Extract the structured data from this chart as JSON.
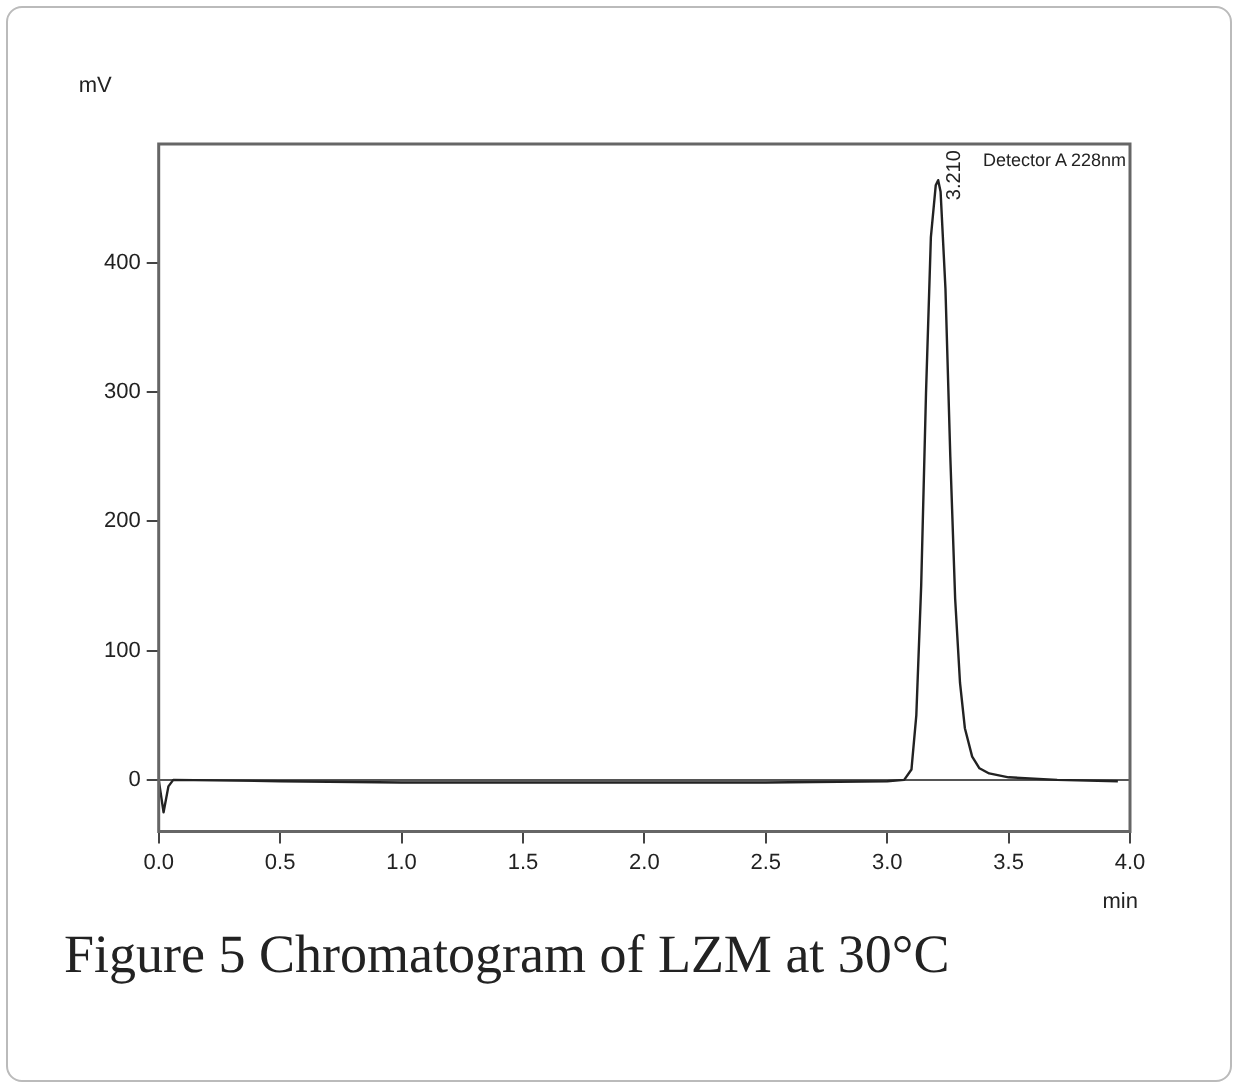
{
  "chart_data": {
    "type": "line",
    "title": "Figure 5 Chromatogram of LZM at 30°C",
    "xlabel": "min",
    "ylabel": "mV",
    "x": [
      0,
      0.02,
      0.04,
      0.06,
      0.5,
      1.0,
      1.5,
      2.0,
      2.5,
      3.0,
      3.07,
      3.1,
      3.12,
      3.14,
      3.16,
      3.18,
      3.2,
      3.21,
      3.22,
      3.24,
      3.26,
      3.28,
      3.3,
      3.32,
      3.35,
      3.38,
      3.42,
      3.5,
      3.7,
      3.95
    ],
    "series": [
      {
        "name": "Detector A 228nm",
        "color": "#222222",
        "values": [
          0,
          -25,
          -5,
          0,
          -1,
          -2,
          -2,
          -2,
          -2,
          -1,
          0,
          8,
          50,
          150,
          300,
          420,
          460,
          464,
          455,
          380,
          250,
          140,
          75,
          40,
          18,
          9,
          5,
          2,
          0,
          -1
        ]
      }
    ],
    "xlim": [
      0,
      4.0
    ],
    "xticks": [
      {
        "value": 0,
        "label": "0.0"
      },
      {
        "value": 0.5,
        "label": "0.5"
      },
      {
        "value": 1,
        "label": "1.0"
      },
      {
        "value": 1.5,
        "label": "1.5"
      },
      {
        "value": 2,
        "label": "2.0"
      },
      {
        "value": 2.5,
        "label": "2.5"
      },
      {
        "value": 3,
        "label": "3.0"
      },
      {
        "value": 3.5,
        "label": "3.5"
      },
      {
        "value": 4,
        "label": "4.0"
      }
    ],
    "ylim": [
      -40,
      492
    ],
    "yticks": [
      0,
      100,
      200,
      300,
      400
    ],
    "ref_lines": [
      {
        "axis": "y",
        "value": 0,
        "color": "#555555"
      }
    ],
    "annotations": [
      {
        "text": "3.210",
        "x": 3.21,
        "y": 464
      }
    ],
    "grid": false,
    "legend": "top right",
    "marker": "none",
    "line_style": "solid"
  }
}
